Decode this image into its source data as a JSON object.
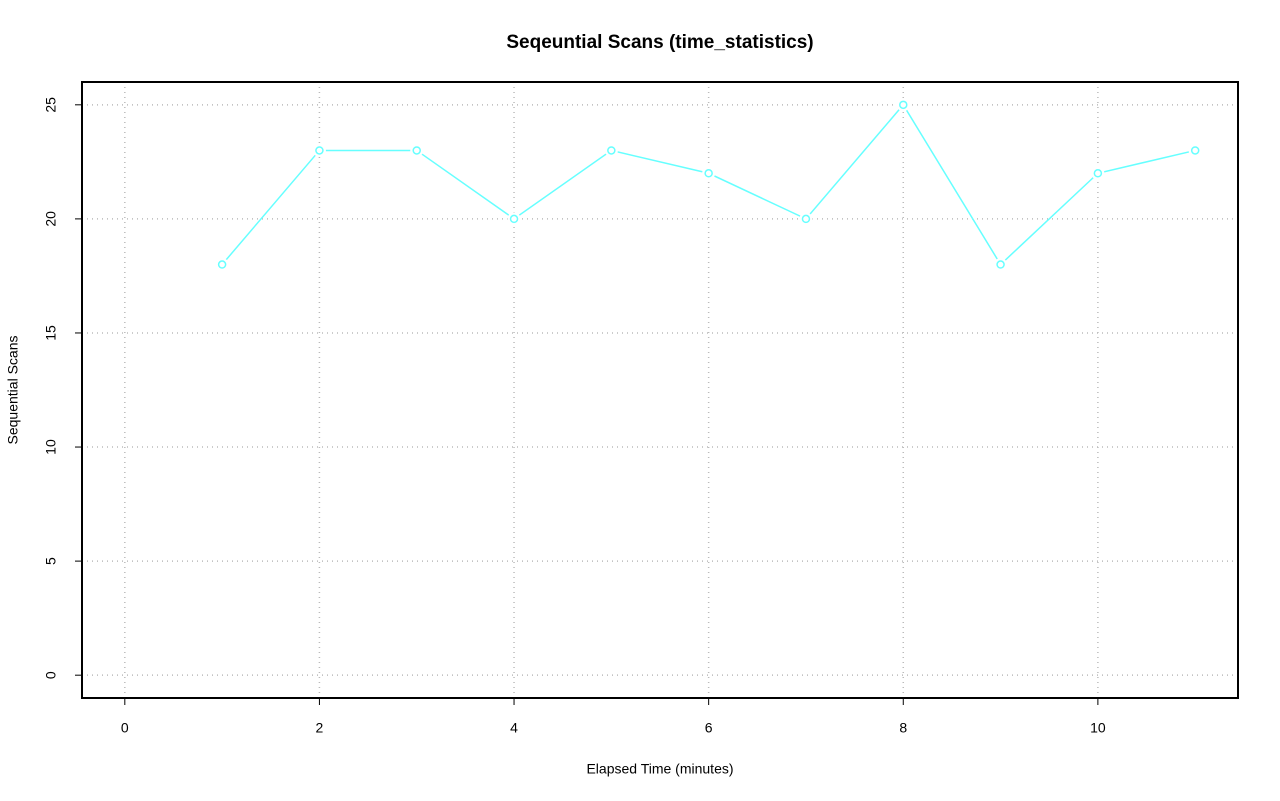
{
  "chart_data": {
    "type": "line",
    "title": "Seqeuntial Scans (time_statistics)",
    "x_label": "Elapsed Time (minutes)",
    "y_label": "Sequential Scans",
    "x": [
      1,
      2,
      3,
      4,
      5,
      6,
      7,
      8,
      9,
      10,
      11
    ],
    "series": [
      {
        "color": "#66ffff",
        "values": [
          18,
          23,
          23,
          20,
          23,
          22,
          20,
          25,
          18,
          22,
          23
        ]
      }
    ],
    "xlim": [
      -0.44,
      11.44
    ],
    "xticks": [
      0,
      2,
      4,
      6,
      8,
      10
    ],
    "ylim": [
      -1,
      26
    ],
    "yticks": [
      0,
      5,
      10,
      15,
      20,
      25
    ],
    "grid": true
  }
}
